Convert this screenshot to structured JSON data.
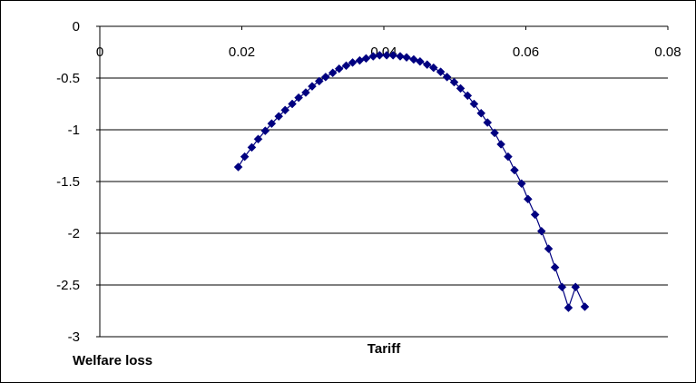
{
  "chart_data": {
    "type": "line",
    "xlabel": "Tariff",
    "ylabel": "Welfare loss",
    "xlim": [
      0,
      0.08
    ],
    "ylim": [
      -3,
      0
    ],
    "x_ticks": [
      "0",
      "0.02",
      "0.04",
      "0.06",
      "0.08"
    ],
    "y_ticks": [
      "0",
      "-0.5",
      "-1",
      "-1.5",
      "-2",
      "-2.5",
      "-3"
    ],
    "x_axis_position": "top",
    "grid": "horizontal",
    "legend": "none",
    "marker": "diamond",
    "series_color": "#000080",
    "series": [
      {
        "x": [
          0.0195,
          0.0204,
          0.0214,
          0.0223,
          0.0233,
          0.0242,
          0.0252,
          0.0261,
          0.0271,
          0.028,
          0.029,
          0.0299,
          0.0309,
          0.0318,
          0.0328,
          0.0337,
          0.0347,
          0.0356,
          0.0366,
          0.0375,
          0.0385,
          0.0394,
          0.0404,
          0.0413,
          0.0423,
          0.0432,
          0.0442,
          0.0451,
          0.0461,
          0.047,
          0.048,
          0.0489,
          0.0499,
          0.0508,
          0.0518,
          0.0527,
          0.0537,
          0.0546,
          0.0556,
          0.0565,
          0.0575,
          0.0584,
          0.0594,
          0.0603,
          0.0613,
          0.0622,
          0.0632,
          0.0641,
          0.0651,
          0.066,
          0.067,
          0.0683
        ],
        "y": [
          -1.36,
          -1.26,
          -1.17,
          -1.09,
          -1.01,
          -0.94,
          -0.87,
          -0.81,
          -0.75,
          -0.69,
          -0.64,
          -0.58,
          -0.53,
          -0.49,
          -0.45,
          -0.41,
          -0.38,
          -0.35,
          -0.33,
          -0.31,
          -0.29,
          -0.28,
          -0.28,
          -0.28,
          -0.29,
          -0.3,
          -0.32,
          -0.34,
          -0.37,
          -0.4,
          -0.44,
          -0.49,
          -0.54,
          -0.6,
          -0.67,
          -0.75,
          -0.84,
          -0.93,
          -1.03,
          -1.14,
          -1.26,
          -1.39,
          -1.52,
          -1.67,
          -1.82,
          -1.98,
          -2.15,
          -2.33,
          -2.52,
          -2.72,
          -2.52,
          -2.71
        ]
      }
    ]
  }
}
